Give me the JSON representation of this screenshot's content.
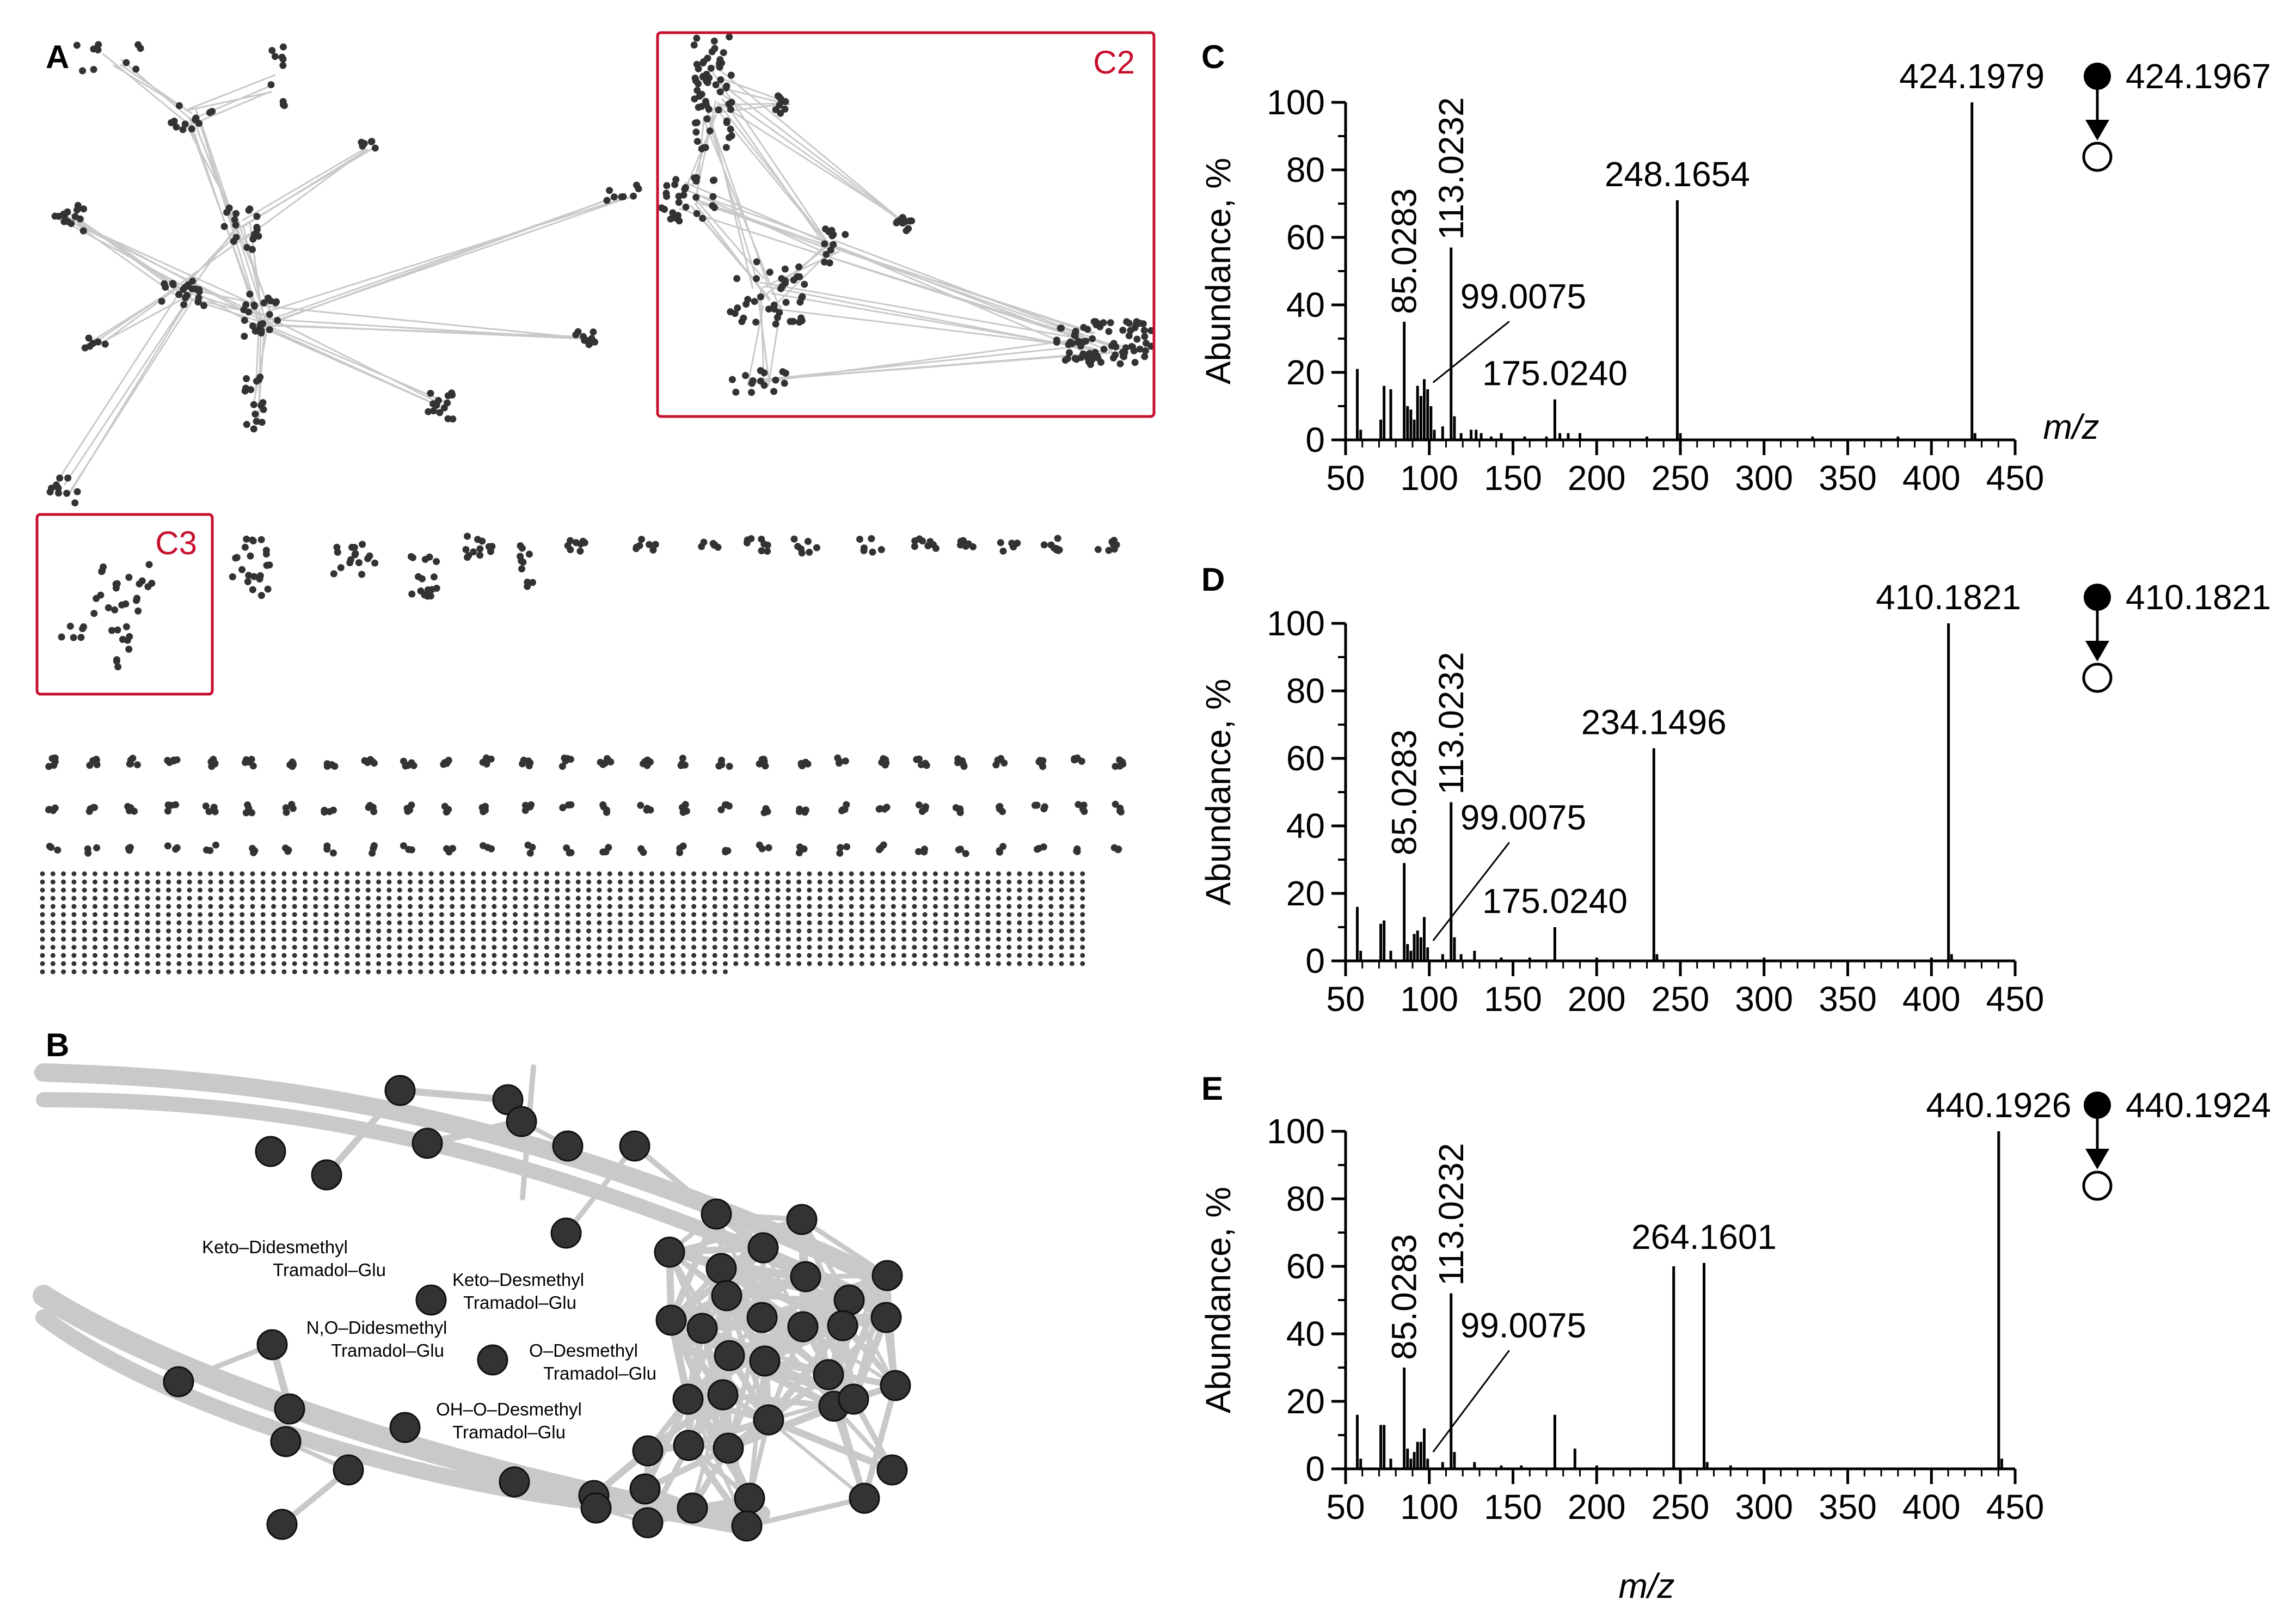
{
  "panels": {
    "A": {
      "letter": "A",
      "clusters": [
        "C2",
        "C3"
      ]
    },
    "B": {
      "letter": "B",
      "labels": [
        {
          "lines": [
            "Keto–Didesmethyl",
            "Tramadol–Glu"
          ]
        },
        {
          "lines": [
            "Keto–Desmethyl",
            "Tramadol–Glu"
          ]
        },
        {
          "lines": [
            "N,O–Didesmethyl",
            "Tramadol–Glu"
          ]
        },
        {
          "lines": [
            "O–Desmethyl",
            "Tramadol–Glu"
          ]
        },
        {
          "lines": [
            "OH–O–Desmethyl",
            "Tramadol–Glu"
          ]
        }
      ]
    }
  },
  "colors": {
    "edge": "#c9c9c9",
    "node": "#333333",
    "cluster_box": "#c8102e",
    "stem": "#000000"
  },
  "chart_data": [
    {
      "type": "bar",
      "panel": "C",
      "title": "",
      "xlabel": "m/z",
      "ylabel": "Abundance, %",
      "xlim": [
        50,
        450
      ],
      "ylim": [
        0,
        100
      ],
      "xticks": [
        "50",
        "100",
        "150",
        "200",
        "250",
        "300",
        "350",
        "400",
        "450"
      ],
      "yticks": [
        "0",
        "20",
        "40",
        "60",
        "80",
        "100"
      ],
      "precursor": {
        "parent": "424.1967"
      },
      "peaks": [
        [
          57,
          21
        ],
        [
          59,
          3
        ],
        [
          71,
          6
        ],
        [
          73,
          16
        ],
        [
          77,
          15
        ],
        [
          85.0283,
          35
        ],
        [
          87,
          10
        ],
        [
          89,
          9
        ],
        [
          91,
          6
        ],
        [
          93,
          16
        ],
        [
          95,
          13
        ],
        [
          97,
          18
        ],
        [
          99.0075,
          15
        ],
        [
          101,
          10
        ],
        [
          103,
          3
        ],
        [
          108,
          4
        ],
        [
          113.0232,
          57
        ],
        [
          115,
          7
        ],
        [
          119,
          2
        ],
        [
          125,
          3
        ],
        [
          128,
          3
        ],
        [
          131,
          2
        ],
        [
          137,
          1
        ],
        [
          143,
          2
        ],
        [
          157,
          1
        ],
        [
          170,
          1
        ],
        [
          175.024,
          12
        ],
        [
          178,
          2
        ],
        [
          183,
          2
        ],
        [
          190,
          2
        ],
        [
          230,
          1
        ],
        [
          248.1654,
          71
        ],
        [
          250,
          2
        ],
        [
          329,
          1
        ],
        [
          380,
          1
        ],
        [
          424.1979,
          100
        ],
        [
          426,
          2
        ]
      ],
      "peak_labels": [
        {
          "mz": 424.1979,
          "text": "424.1979"
        },
        {
          "mz": 248.1654,
          "text": "248.1654"
        },
        {
          "mz": 85.0283,
          "text": "85.0283"
        },
        {
          "mz": 113.0232,
          "text": "113.0232"
        },
        {
          "mz": 99.0075,
          "text": "99.0075"
        },
        {
          "mz": 175.024,
          "text": "175.0240"
        }
      ]
    },
    {
      "type": "bar",
      "panel": "D",
      "title": "",
      "xlabel": "",
      "ylabel": "Abundance, %",
      "xlim": [
        50,
        450
      ],
      "ylim": [
        0,
        100
      ],
      "xticks": [
        "50",
        "100",
        "150",
        "200",
        "250",
        "300",
        "350",
        "400",
        "450"
      ],
      "yticks": [
        "0",
        "20",
        "40",
        "60",
        "80",
        "100"
      ],
      "precursor": {
        "parent": "410.1821"
      },
      "peaks": [
        [
          57,
          16
        ],
        [
          59,
          3
        ],
        [
          71,
          11
        ],
        [
          73,
          12
        ],
        [
          77,
          3
        ],
        [
          85.0283,
          29
        ],
        [
          87,
          5
        ],
        [
          89,
          3
        ],
        [
          91,
          8
        ],
        [
          93,
          9
        ],
        [
          95,
          7
        ],
        [
          97,
          13
        ],
        [
          99.0075,
          4
        ],
        [
          108,
          2
        ],
        [
          113.0232,
          47
        ],
        [
          115,
          7
        ],
        [
          119,
          2
        ],
        [
          127,
          3
        ],
        [
          143,
          1
        ],
        [
          160,
          1
        ],
        [
          175.024,
          10
        ],
        [
          200,
          1
        ],
        [
          234.1496,
          63
        ],
        [
          236,
          2
        ],
        [
          300,
          1
        ],
        [
          400,
          1
        ],
        [
          410.1821,
          100
        ],
        [
          412,
          2
        ]
      ],
      "peak_labels": [
        {
          "mz": 410.1821,
          "text": "410.1821"
        },
        {
          "mz": 234.1496,
          "text": "234.1496"
        },
        {
          "mz": 85.0283,
          "text": "85.0283"
        },
        {
          "mz": 113.0232,
          "text": "113.0232"
        },
        {
          "mz": 99.0075,
          "text": "99.0075"
        },
        {
          "mz": 175.024,
          "text": "175.0240"
        }
      ]
    },
    {
      "type": "bar",
      "panel": "E",
      "title": "",
      "xlabel": "m/z",
      "ylabel": "Abundance, %",
      "xlim": [
        50,
        450
      ],
      "ylim": [
        0,
        100
      ],
      "xticks": [
        "50",
        "100",
        "150",
        "200",
        "250",
        "300",
        "350",
        "400",
        "450"
      ],
      "yticks": [
        "0",
        "20",
        "40",
        "60",
        "80",
        "100"
      ],
      "precursor": {
        "parent": "440.1924"
      },
      "peaks": [
        [
          57,
          16
        ],
        [
          59,
          3
        ],
        [
          71,
          13
        ],
        [
          73,
          13
        ],
        [
          77,
          3
        ],
        [
          85.0283,
          30
        ],
        [
          87,
          6
        ],
        [
          89,
          3
        ],
        [
          91,
          5
        ],
        [
          93,
          8
        ],
        [
          95,
          8
        ],
        [
          97,
          12
        ],
        [
          99.0075,
          3
        ],
        [
          108,
          2
        ],
        [
          113.0232,
          52
        ],
        [
          115,
          5
        ],
        [
          127,
          2
        ],
        [
          143,
          1
        ],
        [
          155,
          1
        ],
        [
          175,
          16
        ],
        [
          187,
          6
        ],
        [
          200,
          1
        ],
        [
          246,
          60
        ],
        [
          264.1601,
          61
        ],
        [
          266,
          2
        ],
        [
          280,
          1
        ],
        [
          440.1926,
          100
        ],
        [
          442,
          3
        ]
      ],
      "peak_labels": [
        {
          "mz": 440.1926,
          "text": "440.1926"
        },
        {
          "mz": 264.1601,
          "text": "264.1601"
        },
        {
          "mz": 85.0283,
          "text": "85.0283"
        },
        {
          "mz": 113.0232,
          "text": "113.0232"
        },
        {
          "mz": 99.0075,
          "text": "99.0075"
        }
      ]
    }
  ]
}
